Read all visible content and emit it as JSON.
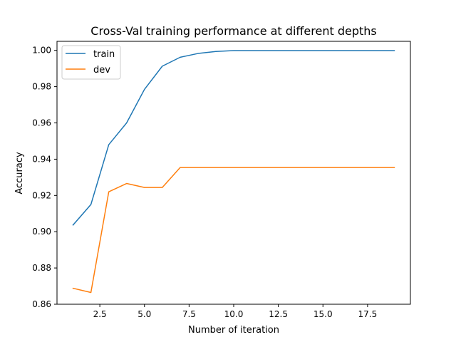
{
  "chart_data": {
    "type": "line",
    "title": "Cross-Val training performance at different depths",
    "xlabel": "Number of iteration",
    "ylabel": "Accuracy",
    "x": [
      1,
      2,
      3,
      4,
      5,
      6,
      7,
      8,
      9,
      10,
      11,
      12,
      13,
      14,
      15,
      16,
      17,
      18,
      19
    ],
    "xlim": [
      0.1,
      19.9
    ],
    "ylim": [
      0.86,
      1.005
    ],
    "xticks": [
      2.5,
      5.0,
      7.5,
      10.0,
      12.5,
      15.0,
      17.5
    ],
    "xtick_labels": [
      "2.5",
      "5.0",
      "7.5",
      "10.0",
      "12.5",
      "15.0",
      "17.5"
    ],
    "yticks": [
      0.86,
      0.88,
      0.9,
      0.92,
      0.94,
      0.96,
      0.98,
      1.0
    ],
    "ytick_labels": [
      "0.86",
      "0.88",
      "0.90",
      "0.92",
      "0.94",
      "0.96",
      "0.98",
      "1.00"
    ],
    "grid": false,
    "legend_position": "top-left",
    "series": [
      {
        "name": "train",
        "color": "#1f77b4",
        "values": [
          0.9037,
          0.915,
          0.948,
          0.96,
          0.9785,
          0.9913,
          0.9962,
          0.9983,
          0.9994,
          0.9999,
          0.9999,
          0.9999,
          0.9999,
          0.9999,
          0.9999,
          0.9999,
          0.9999,
          0.9999,
          0.9999
        ]
      },
      {
        "name": "dev",
        "color": "#ff7f0e",
        "values": [
          0.8688,
          0.8665,
          0.922,
          0.9266,
          0.9244,
          0.9244,
          0.9354,
          0.9354,
          0.9354,
          0.9354,
          0.9354,
          0.9354,
          0.9354,
          0.9354,
          0.9354,
          0.9354,
          0.9354,
          0.9354,
          0.9354
        ]
      }
    ]
  }
}
